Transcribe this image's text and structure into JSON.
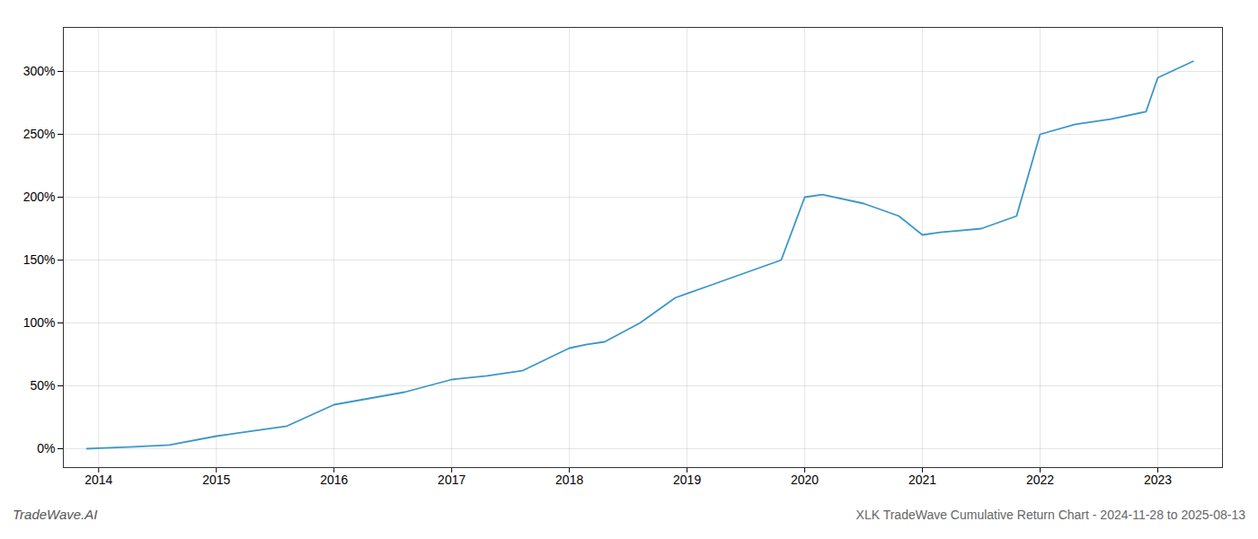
{
  "chart_data": {
    "type": "line",
    "title": "XLK TradeWave Cumulative Return Chart - 2024-11-28 to 2025-08-13",
    "annotations": [
      "TradeWave.AI"
    ],
    "x": [
      2013.9,
      2014.0,
      2014.3,
      2014.6,
      2015.0,
      2015.3,
      2015.6,
      2016.0,
      2016.3,
      2016.6,
      2017.0,
      2017.3,
      2017.6,
      2018.0,
      2018.15,
      2018.3,
      2018.6,
      2018.9,
      2019.2,
      2019.5,
      2019.8,
      2020.0,
      2020.15,
      2020.5,
      2020.8,
      2021.0,
      2021.15,
      2021.5,
      2021.8,
      2022.0,
      2022.3,
      2022.6,
      2022.9,
      2023.0,
      2023.3
    ],
    "values": [
      0,
      0.5,
      1.5,
      3,
      10,
      14,
      18,
      35,
      40,
      45,
      55,
      58,
      62,
      80,
      83,
      85,
      100,
      120,
      130,
      140,
      150,
      200,
      202,
      195,
      185,
      170,
      172,
      175,
      185,
      250,
      258,
      262,
      268,
      295,
      308
    ],
    "color": "#3a97c9",
    "xlim": [
      2013.7,
      2023.55
    ],
    "ylim": [
      -15,
      335
    ],
    "xticks": [
      2014,
      2015,
      2016,
      2017,
      2018,
      2019,
      2020,
      2021,
      2022,
      2023
    ],
    "yticks": [
      {
        "value": 0,
        "label": "0%"
      },
      {
        "value": 50,
        "label": "50%"
      },
      {
        "value": 100,
        "label": "100%"
      },
      {
        "value": 150,
        "label": "150%"
      },
      {
        "value": 200,
        "label": "200%"
      },
      {
        "value": 250,
        "label": "250%"
      },
      {
        "value": 300,
        "label": "300%"
      }
    ],
    "grid": true
  }
}
